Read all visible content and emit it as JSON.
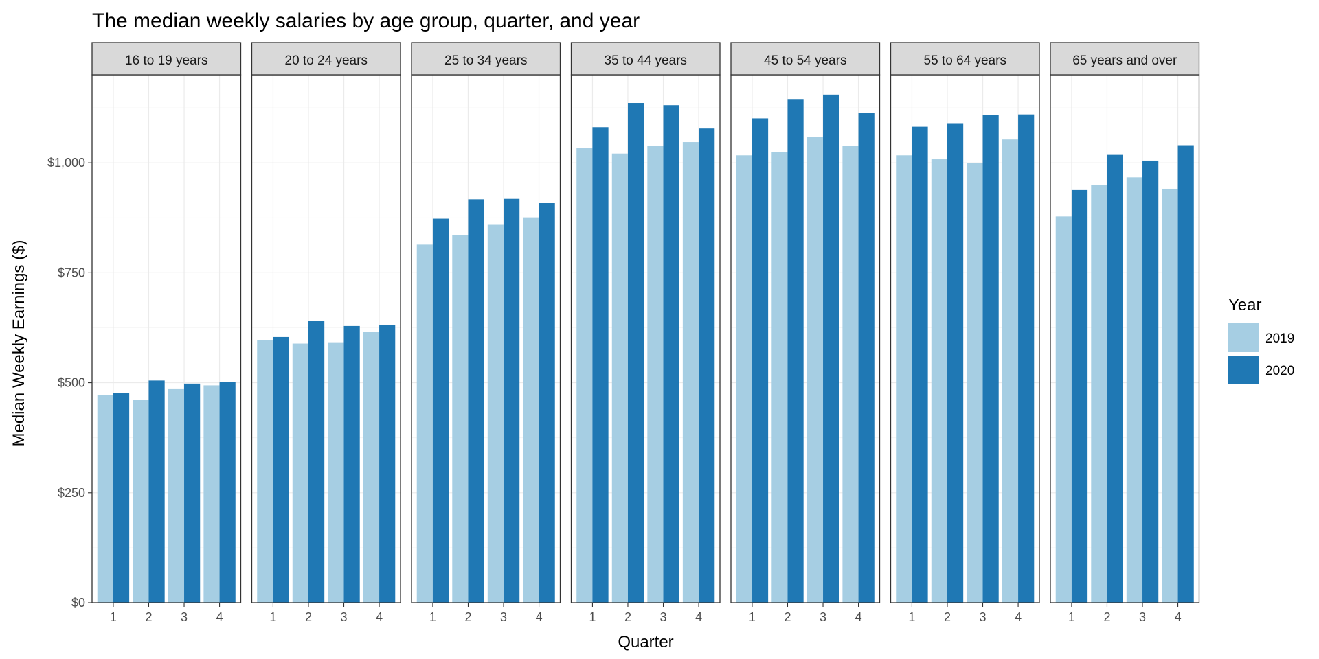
{
  "chart_data": {
    "type": "bar",
    "title": "The median weekly salaries by age group, quarter, and year",
    "xlabel": "Quarter",
    "ylabel": "Median Weekly Earnings ($)",
    "ylim": [
      0,
      1200
    ],
    "y_ticks": [
      0,
      250,
      500,
      750,
      1000
    ],
    "y_tick_labels": [
      "$0",
      "$250",
      "$500",
      "$750",
      "$1,000"
    ],
    "grid": true,
    "legend": {
      "title": "Year",
      "position": "right",
      "entries": [
        "2019",
        "2020"
      ]
    },
    "categories": [
      "1",
      "2",
      "3",
      "4"
    ],
    "colors": {
      "2019": "#a6cee3",
      "2020": "#1f78b4"
    },
    "facets": [
      {
        "label": "16 to 19 years",
        "series": [
          {
            "name": "2019",
            "values": [
              472,
              461,
              487,
              494
            ]
          },
          {
            "name": "2020",
            "values": [
              477,
              505,
              498,
              502
            ]
          }
        ]
      },
      {
        "label": "20 to 24 years",
        "series": [
          {
            "name": "2019",
            "values": [
              597,
              589,
              592,
              615
            ]
          },
          {
            "name": "2020",
            "values": [
              604,
              640,
              629,
              632
            ]
          }
        ]
      },
      {
        "label": "25 to 34 years",
        "series": [
          {
            "name": "2019",
            "values": [
              814,
              836,
              859,
              876
            ]
          },
          {
            "name": "2020",
            "values": [
              873,
              917,
              918,
              909
            ]
          }
        ]
      },
      {
        "label": "35 to 44 years",
        "series": [
          {
            "name": "2019",
            "values": [
              1033,
              1021,
              1039,
              1047
            ]
          },
          {
            "name": "2020",
            "values": [
              1081,
              1136,
              1131,
              1078
            ]
          }
        ]
      },
      {
        "label": "45 to 54 years",
        "series": [
          {
            "name": "2019",
            "values": [
              1017,
              1025,
              1058,
              1039
            ]
          },
          {
            "name": "2020",
            "values": [
              1101,
              1145,
              1155,
              1113
            ]
          }
        ]
      },
      {
        "label": "55 to 64 years",
        "series": [
          {
            "name": "2019",
            "values": [
              1017,
              1008,
              1000,
              1053
            ]
          },
          {
            "name": "2020",
            "values": [
              1082,
              1090,
              1108,
              1110
            ]
          }
        ]
      },
      {
        "label": "65 years and over",
        "series": [
          {
            "name": "2019",
            "values": [
              878,
              950,
              967,
              941
            ]
          },
          {
            "name": "2020",
            "values": [
              938,
              1018,
              1005,
              1040
            ]
          }
        ]
      }
    ]
  }
}
